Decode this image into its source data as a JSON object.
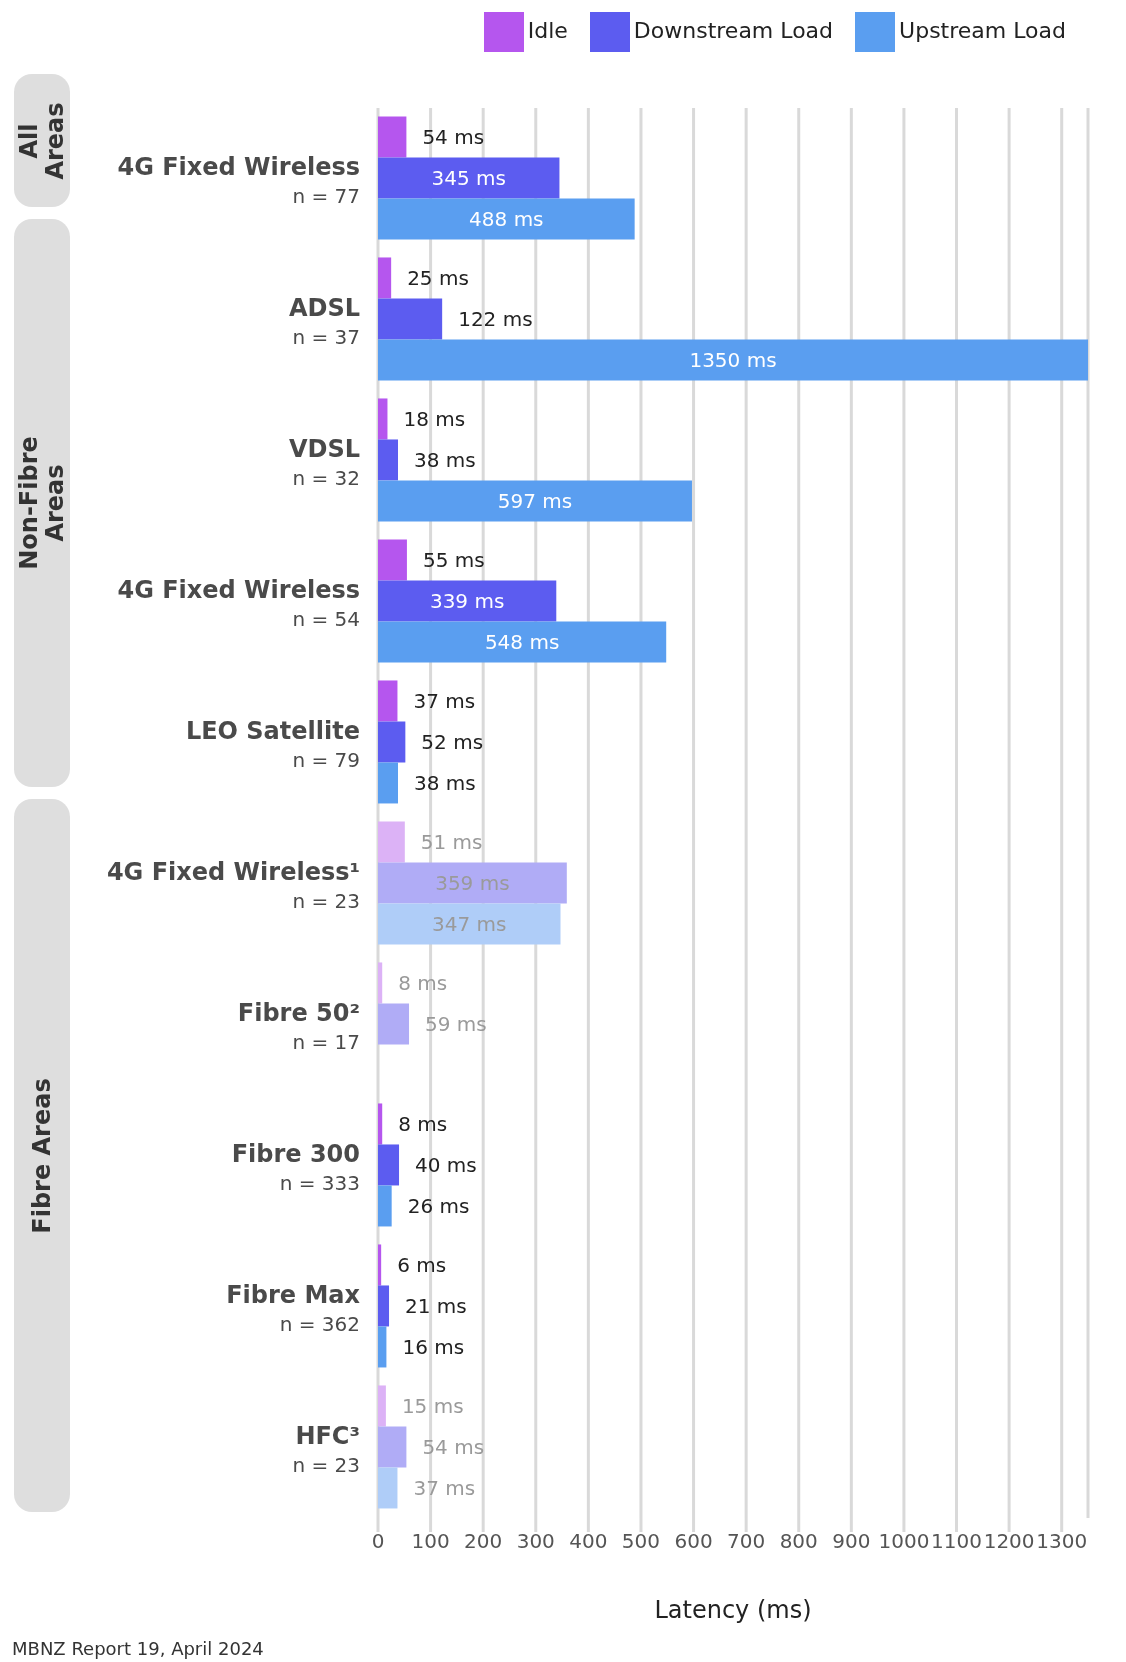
{
  "chart_data": {
    "type": "bar",
    "orientation": "horizontal",
    "xlabel": "Latency (ms)",
    "categories": [
      "4G Fixed Wireless\nn = 77",
      "ADSL\nn = 37",
      "VDSL\nn = 32",
      "4G Fixed Wireless\nn = 54",
      "LEO Satellite\nn = 79",
      "4G Fixed Wireless¹\nn = 23",
      "Fibre 50²\nn = 17",
      "Fibre 300\nn = 333",
      "Fibre Max\nn = 362",
      "HFC³\nn = 23"
    ],
    "series": [
      {
        "name": "Idle",
        "color": "#b556ee",
        "values": [
          54,
          25,
          18,
          55,
          37,
          51,
          8,
          8,
          6,
          15
        ],
        "value_labels": [
          "54 ms",
          "25 ms",
          "18 ms",
          "55 ms",
          "37 ms",
          "51 ms",
          "8 ms",
          "8 ms",
          "6 ms",
          "15 ms"
        ],
        "colors": [
          "#b556ee",
          "#b556ee",
          "#b556ee",
          "#b556ee",
          "#b556ee",
          "#dcb2f6",
          "#dcb2f6",
          "#b556ee",
          "#b556ee",
          "#dcb2f6"
        ]
      },
      {
        "name": "Downstream Load",
        "color": "#5c5cf0",
        "values": [
          345,
          122,
          38,
          339,
          52,
          359,
          59,
          40,
          21,
          54
        ],
        "value_labels": [
          "345 ms",
          "122 ms",
          "38 ms",
          "339 ms",
          "52 ms",
          "359 ms",
          "59 ms",
          "40 ms",
          "21 ms",
          "54 ms"
        ],
        "colors": [
          "#5c5cf0",
          "#5c5cf0",
          "#5c5cf0",
          "#5c5cf0",
          "#5c5cf0",
          "#b0acf6",
          "#b0acf6",
          "#5c5cf0",
          "#5c5cf0",
          "#b0acf6"
        ]
      },
      {
        "name": "Upstream Load",
        "color": "#5a9ef0",
        "values": [
          488,
          1350,
          597,
          548,
          38,
          347,
          null,
          26,
          16,
          37
        ],
        "value_labels": [
          "488 ms",
          "1350 ms",
          "597 ms",
          "548 ms",
          "38 ms",
          "347 ms",
          null,
          "26 ms",
          "16 ms",
          "37 ms"
        ],
        "colors": [
          "#5a9ef0",
          "#5a9ef0",
          "#5a9ef0",
          "#5a9ef0",
          "#5a9ef0",
          "#afcdf8",
          "#afcdf8",
          "#5a9ef0",
          "#5a9ef0",
          "#afcdf8"
        ]
      }
    ],
    "xlim": [
      0,
      1350
    ],
    "xticks": [
      0,
      100,
      200,
      300,
      400,
      500,
      600,
      700,
      800,
      900,
      1000,
      1100,
      1200,
      1300
    ],
    "grid": "x",
    "legend": "top right",
    "annotations": [
      "All Areas",
      "Non-Fibre Areas",
      "Fibre Areas",
      "MBNZ Report 19, April 2024"
    ]
  }
}
